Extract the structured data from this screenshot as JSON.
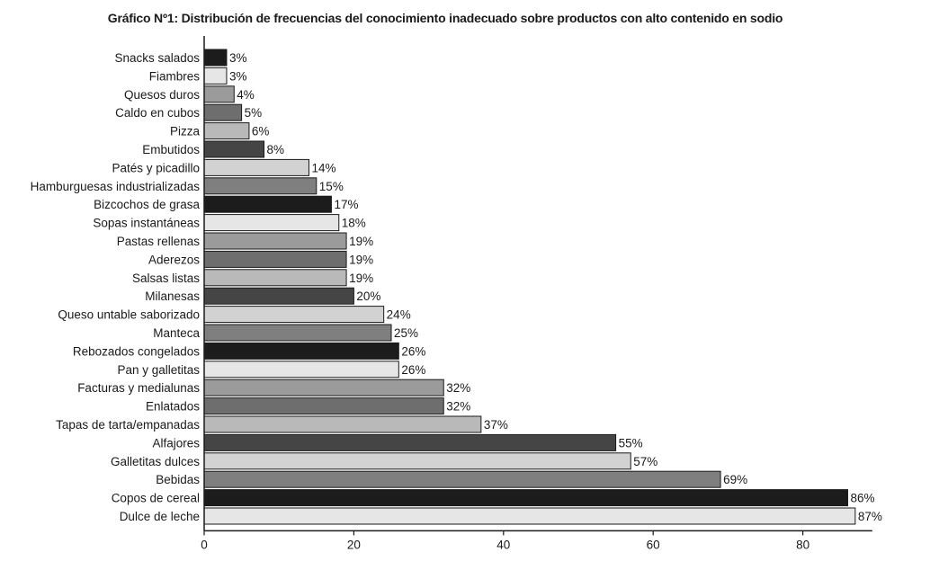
{
  "chart_data": {
    "type": "bar",
    "orientation": "horizontal",
    "title": "Gráfico Nº1: Distribución de frecuencias del conocimiento inadecuado sobre productos con alto contenido en sodio",
    "xlabel": "",
    "ylabel": "",
    "xlim": [
      0,
      90
    ],
    "xticks": [
      0,
      20,
      40,
      60,
      80
    ],
    "grid": false,
    "legend": "none",
    "value_suffix": "%",
    "categories": [
      "Snacks salados",
      "Fiambres",
      "Quesos duros",
      "Caldo en cubos",
      "Pizza",
      "Embutidos",
      "Patés y picadillo",
      "Hamburguesas industrializadas",
      "Bizcochos de grasa",
      "Sopas instantáneas",
      "Pastas rellenas",
      "Aderezos",
      "Salsas listas",
      "Milanesas",
      "Queso untable saborizado",
      "Manteca",
      "Rebozados congelados",
      "Pan y galletitas",
      "Facturas y medialunas",
      "Enlatados",
      "Tapas de tarta/empanadas",
      "Alfajores",
      "Galletitas dulces",
      "Bebidas",
      "Copos de cereal",
      "Dulce de leche"
    ],
    "values": [
      3,
      3,
      4,
      5,
      6,
      8,
      14,
      15,
      17,
      18,
      19,
      19,
      19,
      20,
      24,
      25,
      26,
      26,
      32,
      32,
      37,
      55,
      57,
      69,
      86,
      87
    ],
    "bar_colors": [
      "#1c1c1c",
      "#e6e6e6",
      "#9b9b9b",
      "#6e6e6e",
      "#b9b9b9",
      "#454545",
      "#d2d2d2",
      "#7f7f7f"
    ]
  }
}
